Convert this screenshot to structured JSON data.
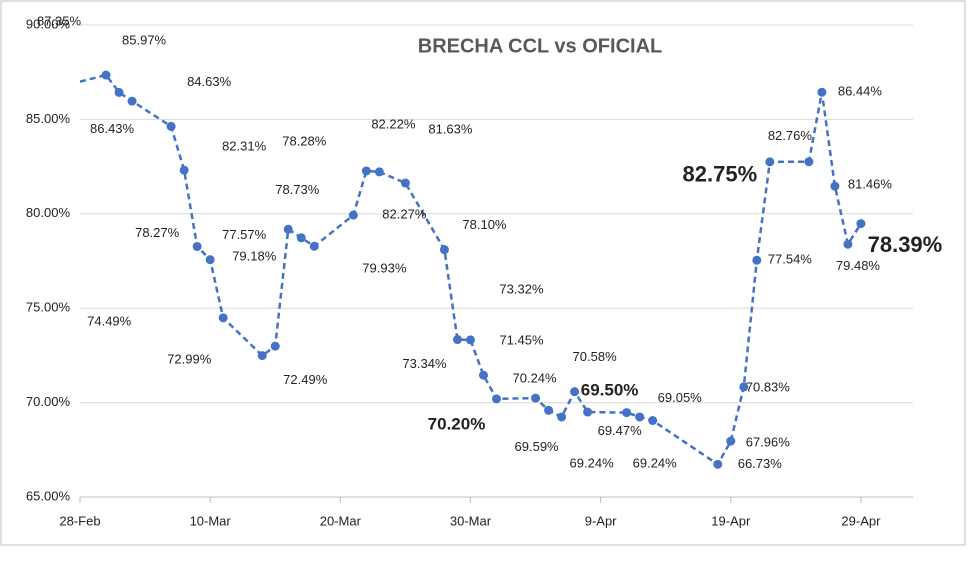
{
  "chart_data": {
    "type": "line",
    "title": "BRECHA CCL vs OFICIAL",
    "x": [
      "28-Feb",
      "2-Mar",
      "3-Mar",
      "4-Mar",
      "7-Mar",
      "8-Mar",
      "9-Mar",
      "10-Mar",
      "11-Mar",
      "14-Mar",
      "15-Mar",
      "16-Mar",
      "17-Mar",
      "18-Mar",
      "21-Mar",
      "22-Mar",
      "23-Mar",
      "25-Mar",
      "28-Mar",
      "29-Mar",
      "30-Mar",
      "31-Mar",
      "1-Apr",
      "4-Apr",
      "5-Apr",
      "6-Apr",
      "7-Apr",
      "8-Apr",
      "11-Apr",
      "12-Apr",
      "13-Apr",
      "18-Apr",
      "19-Apr",
      "20-Apr",
      "21-Apr",
      "22-Apr",
      "25-Apr",
      "26-Apr",
      "27-Apr",
      "28-Apr",
      "29-Apr"
    ],
    "values": [
      87.0,
      87.35,
      86.43,
      85.97,
      84.63,
      82.31,
      78.27,
      77.57,
      74.49,
      72.49,
      72.99,
      79.18,
      78.73,
      78.28,
      79.93,
      82.27,
      82.22,
      81.63,
      78.1,
      73.34,
      73.32,
      71.45,
      70.2,
      70.24,
      69.59,
      69.24,
      70.58,
      69.5,
      69.47,
      69.24,
      69.05,
      66.73,
      67.96,
      70.83,
      77.54,
      82.75,
      82.76,
      86.44,
      81.46,
      78.39,
      79.48
    ],
    "value_labels": [
      null,
      "87.35%",
      "86.43%",
      "85.97%",
      "84.63%",
      "82.31%",
      "78.27%",
      "77.57%",
      "74.49%",
      "72.49%",
      "72.99%",
      "79.18%",
      "78.73%",
      "78.28%",
      "79.93%",
      "82.27%",
      "82.22%",
      "81.63%",
      "78.10%",
      "73.34%",
      "73.32%",
      "71.45%",
      "70.20%",
      "70.24%",
      "69.59%",
      "69.24%",
      "70.58%",
      "69.50%",
      "69.47%",
      "69.24%",
      "69.05%",
      "66.73%",
      "67.96%",
      "70.83%",
      "77.54%",
      "82.75%",
      "82.76%",
      "86.44%",
      "81.46%",
      "78.39%",
      "79.48%"
    ],
    "color": "#4472c4",
    "xlim": [
      "28-Feb",
      "3-May"
    ],
    "xticks": [
      "28-Feb",
      "10-Mar",
      "20-Mar",
      "30-Mar",
      "9-Apr",
      "19-Apr",
      "29-Apr"
    ],
    "ylim": [
      65,
      90
    ],
    "yticks": [
      {
        "value": 65,
        "label": "65.00%"
      },
      {
        "value": 70,
        "label": "70.00%"
      },
      {
        "value": 75,
        "label": "75.00%"
      },
      {
        "value": 80,
        "label": "80.00%"
      },
      {
        "value": 85,
        "label": "85.00%"
      },
      {
        "value": 90,
        "label": "90.00%"
      }
    ],
    "grid": true
  }
}
